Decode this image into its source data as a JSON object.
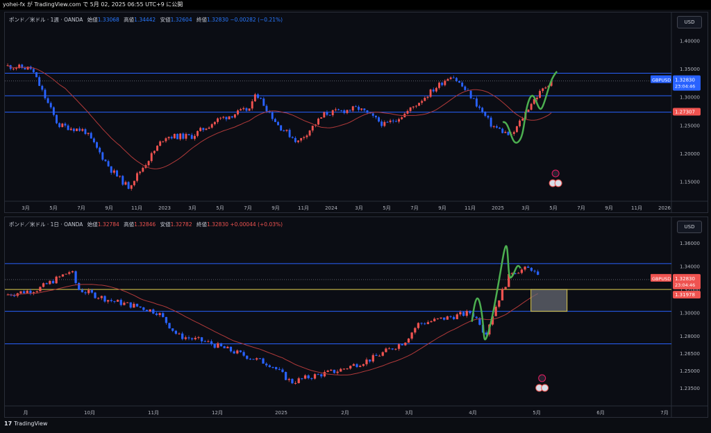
{
  "topbar": {
    "text": "yohei-fx が TradingView.com で 5月 02, 2025 06:55 UTC+9 に公開"
  },
  "footer": {
    "brand": "TradingView",
    "logo": "17"
  },
  "colors": {
    "up": "#ef5350",
    "down": "#2962ff",
    "ma": "#b23a3a",
    "hline": "#2962ff",
    "green": "#4caf50",
    "yellow": "#e3d04f"
  },
  "panels": [
    {
      "id": "weekly",
      "legend": {
        "symbol": "ポンド／米ドル · 1週 · OANDA",
        "o_label": "始値",
        "o": "1.33068",
        "h_label": "高値",
        "h": "1.34442",
        "l_label": "安値",
        "l": "1.32604",
        "c_label": "終値",
        "c": "1.32830",
        "chg": "−0.00282 (−0.21%)"
      },
      "currency": "USD",
      "ticks": [
        "1.40000",
        "1.35000",
        "1.30000",
        "1.25000",
        "1.20000",
        "1.15000"
      ],
      "x_labels": [
        "3月",
        "5月",
        "7月",
        "9月",
        "11月",
        "2023",
        "3月",
        "5月",
        "7月",
        "9月",
        "11月",
        "2024",
        "3月",
        "5月",
        "7月",
        "9月",
        "11月",
        "2025",
        "3月",
        "5月",
        "7月",
        "9月",
        "11月",
        "2026"
      ],
      "price_badge": {
        "symbol": "GBPUSD",
        "price": "1.32830",
        "countdown": "23:04:46"
      },
      "level_badge": "1.27307",
      "hlines": [
        1.342,
        1.302,
        1.273
      ],
      "ylim": [
        1.12,
        1.425
      ],
      "candles_seed": 11
    },
    {
      "id": "daily",
      "legend": {
        "symbol": "ポンド／米ドル · 1日 · OANDA",
        "o_label": "始値",
        "o": "1.32784",
        "h_label": "高値",
        "h": "1.32846",
        "l_label": "安値",
        "l": "1.32782",
        "c_label": "終値",
        "c": "1.32830",
        "chg": "+0.00044 (+0.03%)"
      },
      "currency": "USD",
      "ticks": [
        "1.36000",
        "1.34000",
        "1.32000",
        "1.30000",
        "1.28000",
        "1.26500",
        "1.25000",
        "1.23500"
      ],
      "x_labels": [
        "月",
        "10月",
        "11月",
        "12月",
        "2025",
        "2月",
        "3月",
        "4月",
        "5月",
        "6月",
        "7月"
      ],
      "price_badge": {
        "symbol": "GBPUSD",
        "price": "1.32830",
        "countdown": "23:04:46"
      },
      "level_badge": "1.31978",
      "hlines": [
        1.342,
        1.301,
        1.273
      ],
      "yellow_line": 1.3198,
      "ylim": [
        1.222,
        1.37
      ],
      "candles_seed": 7
    }
  ]
}
